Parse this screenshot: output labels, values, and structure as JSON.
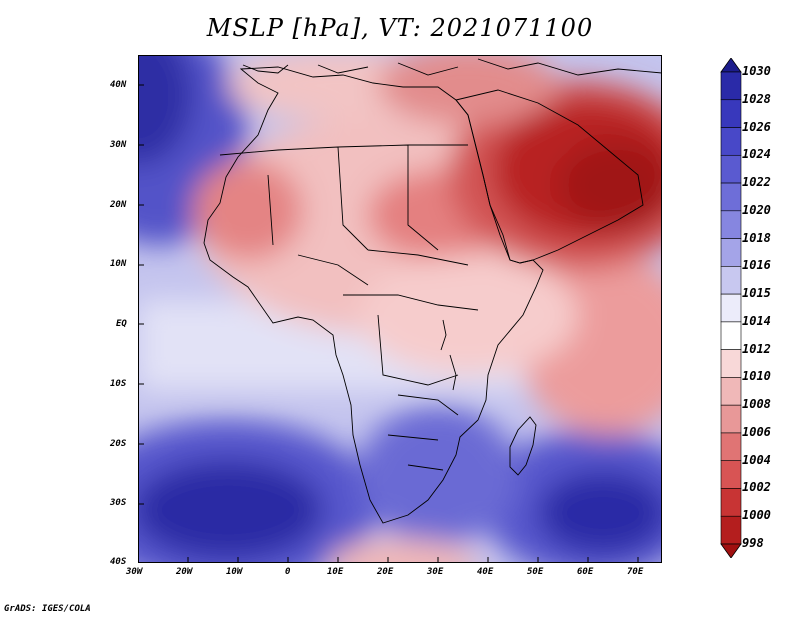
{
  "title": "MSLP [hPa], VT: 2021071100",
  "credit": "GrADS: IGES/COLA",
  "map": {
    "lat_labels": [
      "40N",
      "30N",
      "20N",
      "10N",
      "EQ",
      "10S",
      "20S",
      "30S",
      "40S"
    ],
    "lon_labels": [
      "30W",
      "20W",
      "10W",
      "0",
      "10E",
      "20E",
      "30E",
      "40E",
      "50E",
      "60E",
      "70E"
    ],
    "lat_range": [
      -40,
      45
    ],
    "lon_range": [
      -30,
      75
    ]
  },
  "colorbar": {
    "labels": [
      "1030",
      "1028",
      "1026",
      "1024",
      "1022",
      "1020",
      "1018",
      "1016",
      "1015",
      "1014",
      "1012",
      "1010",
      "1008",
      "1006",
      "1004",
      "1002",
      "1000",
      "998"
    ],
    "colors": [
      "#1c1c8c",
      "#2a2aa8",
      "#3838bc",
      "#4848c8",
      "#5a5ad0",
      "#6e6ed8",
      "#8686e0",
      "#a4a4e8",
      "#c8c8f0",
      "#ececfa",
      "#ffffff",
      "#f8d8d8",
      "#f0b8b8",
      "#e89898",
      "#e07474",
      "#d85454",
      "#c83434",
      "#b41e1e",
      "#a01010"
    ]
  }
}
